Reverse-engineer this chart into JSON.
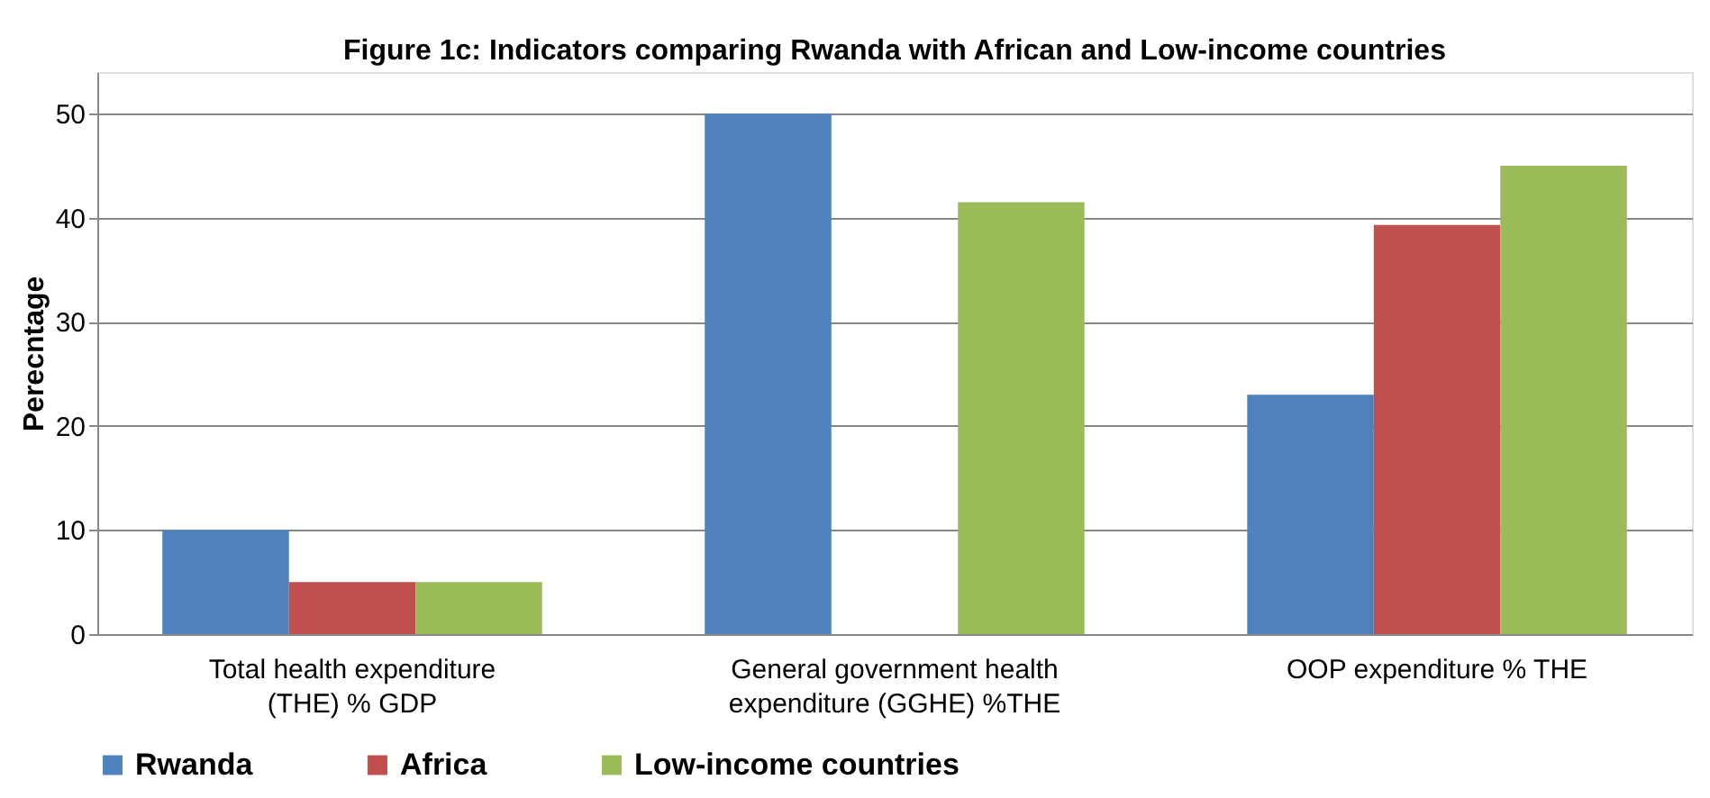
{
  "chart_data": {
    "type": "bar",
    "title": "Figure 1c: Indicators comparing Rwanda with African and Low-income countries",
    "ylabel": "Perecntage",
    "categories": [
      "Total health expenditure\n(THE) % GDP",
      "General government health\nexpenditure (GGHE) %THE",
      "OOP expenditure % THE"
    ],
    "series": [
      {
        "name": "Rwanda",
        "color": "#4f81bd",
        "values": [
          10,
          50,
          23
        ]
      },
      {
        "name": "Africa",
        "color": "#c0504d",
        "values": [
          5,
          null,
          39.3
        ]
      },
      {
        "name": "Low-income countries",
        "color": "#9bbb59",
        "values": [
          5,
          41.5,
          45
        ]
      }
    ],
    "ylim": [
      0,
      54
    ],
    "yticks": [
      0,
      10,
      20,
      30,
      40,
      50
    ],
    "grid": "y",
    "legend": "bottom"
  }
}
